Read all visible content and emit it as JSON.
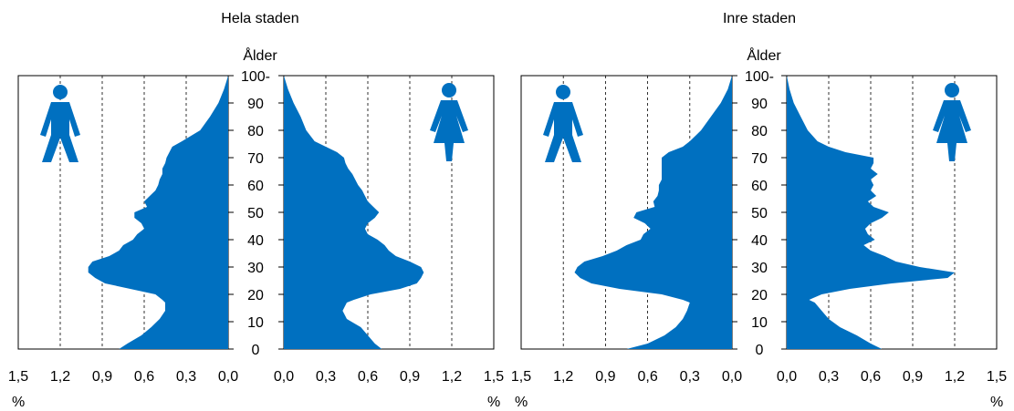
{
  "colors": {
    "area": "#0070C0",
    "icon": "#0070C0",
    "frame": "#000000",
    "grid": "#000000"
  },
  "chart_data": [
    {
      "type": "area",
      "title": "Hela staden",
      "age_label": "Ålder",
      "unit_label": "%",
      "y_ticks": [
        "0",
        "10",
        "20",
        "30",
        "40",
        "50",
        "60",
        "70",
        "80",
        "90",
        "100"
      ],
      "ylim": [
        0,
        100
      ],
      "x_ticks_men": [
        "1,5",
        "1,2",
        "0,9",
        "0,6",
        "0,3",
        "0,0"
      ],
      "x_ticks_women": [
        "0,0",
        "0,3",
        "0,6",
        "0,9",
        "1,2",
        "1,5"
      ],
      "xlim": [
        0,
        1.5
      ],
      "grid": true,
      "icons": [
        "man-icon",
        "woman-icon"
      ],
      "series": [
        {
          "name": "Män",
          "ages": [
            0,
            2,
            5,
            8,
            11,
            14,
            17,
            18,
            20,
            22,
            24,
            26,
            28,
            30,
            32,
            34,
            36,
            38,
            40,
            42,
            44,
            46,
            48,
            50,
            52,
            54,
            56,
            58,
            60,
            62,
            64,
            66,
            68,
            70,
            72,
            74,
            76,
            80,
            85,
            90,
            95,
            100
          ],
          "values": [
            0.78,
            0.72,
            0.62,
            0.55,
            0.49,
            0.45,
            0.45,
            0.47,
            0.52,
            0.7,
            0.88,
            0.95,
            1.0,
            1.0,
            0.97,
            0.85,
            0.78,
            0.75,
            0.68,
            0.65,
            0.6,
            0.62,
            0.67,
            0.67,
            0.58,
            0.6,
            0.56,
            0.52,
            0.5,
            0.49,
            0.47,
            0.47,
            0.45,
            0.44,
            0.42,
            0.4,
            0.33,
            0.2,
            0.13,
            0.07,
            0.03,
            0.0
          ]
        },
        {
          "name": "Kvinnor",
          "ages": [
            0,
            2,
            5,
            8,
            11,
            14,
            17,
            18,
            20,
            22,
            24,
            26,
            28,
            30,
            32,
            34,
            36,
            38,
            40,
            42,
            44,
            46,
            48,
            50,
            52,
            54,
            56,
            58,
            60,
            62,
            64,
            66,
            68,
            70,
            72,
            74,
            76,
            80,
            85,
            90,
            95,
            100
          ],
          "values": [
            0.7,
            0.65,
            0.6,
            0.55,
            0.45,
            0.42,
            0.45,
            0.5,
            0.62,
            0.83,
            0.95,
            0.98,
            1.0,
            0.98,
            0.9,
            0.8,
            0.75,
            0.72,
            0.67,
            0.6,
            0.58,
            0.6,
            0.65,
            0.68,
            0.64,
            0.6,
            0.58,
            0.56,
            0.53,
            0.51,
            0.49,
            0.46,
            0.44,
            0.43,
            0.38,
            0.3,
            0.22,
            0.16,
            0.12,
            0.07,
            0.03,
            0.0
          ]
        }
      ]
    },
    {
      "type": "area",
      "title": "Inre staden",
      "age_label": "Ålder",
      "unit_label": "%",
      "y_ticks": [
        "0",
        "10",
        "20",
        "30",
        "40",
        "50",
        "60",
        "70",
        "80",
        "90",
        "100"
      ],
      "ylim": [
        0,
        100
      ],
      "x_ticks_men": [
        "1,5",
        "1,2",
        "0,9",
        "0,6",
        "0,3",
        "0,0"
      ],
      "x_ticks_women": [
        "0,0",
        "0,3",
        "0,6",
        "0,9",
        "1,2",
        "1,5"
      ],
      "xlim": [
        0,
        1.5
      ],
      "grid": true,
      "icons": [
        "man-icon",
        "woman-icon"
      ],
      "series": [
        {
          "name": "Män",
          "ages": [
            0,
            2,
            5,
            8,
            11,
            14,
            17,
            18,
            20,
            22,
            24,
            26,
            28,
            30,
            32,
            34,
            36,
            38,
            40,
            42,
            44,
            46,
            48,
            50,
            52,
            54,
            56,
            58,
            60,
            62,
            64,
            66,
            68,
            70,
            72,
            74,
            76,
            80,
            85,
            90,
            95,
            100
          ],
          "values": [
            0.75,
            0.6,
            0.48,
            0.4,
            0.35,
            0.32,
            0.3,
            0.35,
            0.5,
            0.8,
            1.0,
            1.08,
            1.12,
            1.1,
            1.05,
            0.92,
            0.82,
            0.75,
            0.65,
            0.63,
            0.58,
            0.62,
            0.7,
            0.68,
            0.55,
            0.56,
            0.53,
            0.52,
            0.52,
            0.5,
            0.5,
            0.5,
            0.5,
            0.5,
            0.45,
            0.35,
            0.3,
            0.22,
            0.15,
            0.08,
            0.03,
            0.0
          ]
        },
        {
          "name": "Kvinnor",
          "ages": [
            0,
            2,
            5,
            8,
            11,
            14,
            17,
            18,
            20,
            22,
            24,
            26,
            28,
            30,
            32,
            34,
            36,
            38,
            40,
            42,
            44,
            46,
            48,
            50,
            52,
            54,
            56,
            58,
            60,
            62,
            64,
            66,
            68,
            70,
            72,
            74,
            76,
            80,
            85,
            90,
            95,
            100
          ],
          "values": [
            0.68,
            0.6,
            0.5,
            0.38,
            0.3,
            0.25,
            0.2,
            0.16,
            0.25,
            0.45,
            0.75,
            1.15,
            1.2,
            0.95,
            0.78,
            0.7,
            0.6,
            0.55,
            0.63,
            0.58,
            0.56,
            0.6,
            0.68,
            0.73,
            0.62,
            0.58,
            0.64,
            0.6,
            0.62,
            0.6,
            0.65,
            0.6,
            0.62,
            0.62,
            0.42,
            0.3,
            0.22,
            0.15,
            0.1,
            0.05,
            0.02,
            0.0
          ]
        }
      ]
    }
  ]
}
